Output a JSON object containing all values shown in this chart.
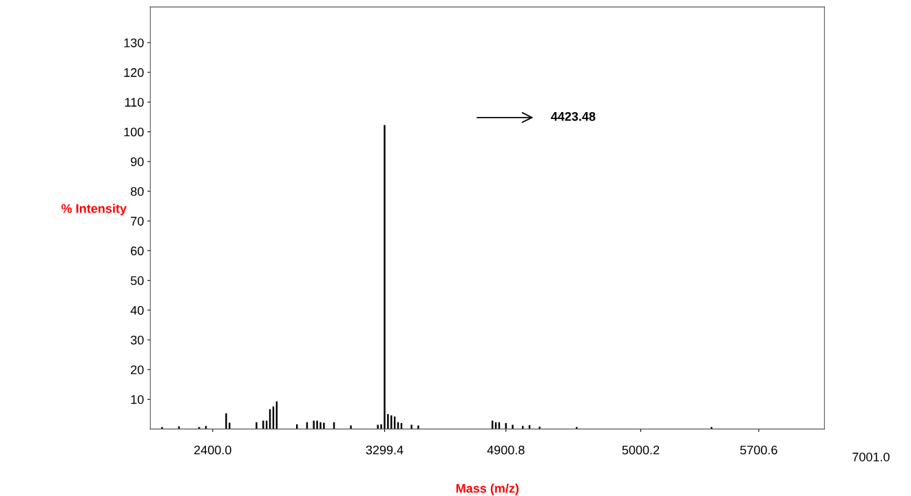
{
  "chart_data": {
    "type": "bar",
    "xlabel": "Mass (m/z)",
    "ylabel": "% Intensity",
    "color": "#000000",
    "categories": [
      null,
      null,
      null,
      null,
      null,
      null,
      null,
      null,
      null,
      null,
      null,
      null,
      null,
      null,
      null,
      null,
      null,
      null,
      "2400.0",
      null,
      null,
      null,
      null,
      null,
      null,
      null,
      null,
      null,
      null,
      null,
      null,
      null,
      null,
      null,
      null,
      null,
      null,
      null,
      null,
      null,
      null,
      null,
      null,
      null,
      null,
      null,
      null,
      null,
      null,
      null,
      null,
      null,
      null,
      null,
      null,
      null,
      null,
      null,
      null,
      null,
      null,
      null,
      null,
      null,
      null,
      null,
      null,
      null,
      null,
      "3299.4",
      null,
      null,
      null,
      null,
      null,
      null,
      null,
      null,
      null,
      null,
      null,
      null,
      null,
      null,
      null,
      null,
      null,
      null,
      null,
      null,
      null,
      null,
      null,
      null,
      null,
      null,
      null,
      null,
      null,
      null,
      null,
      null,
      null,
      null,
      null,
      "4900.8",
      null,
      null,
      null,
      null,
      null,
      null,
      null,
      null,
      null,
      null,
      null,
      null,
      null,
      null,
      null,
      null,
      null,
      null,
      null,
      null,
      null,
      null,
      null,
      null,
      null,
      null,
      null,
      null,
      null,
      null,
      null,
      null,
      null,
      null,
      null,
      null,
      null,
      null,
      null,
      "5000.2",
      null,
      null,
      null,
      null,
      null,
      null,
      null,
      null,
      null,
      null,
      null,
      null,
      null,
      null,
      null,
      null,
      null,
      null,
      null,
      null,
      null,
      null,
      null,
      null,
      null,
      null,
      null,
      null,
      null,
      null,
      null,
      null,
      null,
      null,
      "5700.6",
      null,
      null,
      null,
      null,
      null,
      null,
      null,
      null,
      null,
      null,
      null,
      null,
      null,
      null,
      null,
      null,
      null,
      null,
      null
    ],
    "values": [
      null,
      null,
      null,
      0.7,
      null,
      null,
      null,
      null,
      0.9,
      null,
      null,
      null,
      null,
      null,
      0.7,
      null,
      1.0,
      null,
      null,
      null,
      null,
      null,
      5.3,
      2.1,
      null,
      null,
      null,
      null,
      null,
      null,
      null,
      2.3,
      null,
      2.8,
      2.8,
      6.7,
      7.6,
      9.3,
      null,
      null,
      null,
      null,
      null,
      1.6,
      null,
      null,
      2.3,
      null,
      2.8,
      2.8,
      2.3,
      2.1,
      null,
      null,
      2.3,
      null,
      null,
      null,
      null,
      1.2,
      null,
      null,
      null,
      null,
      null,
      null,
      null,
      1.4,
      1.6,
      102.3,
      5.0,
      4.6,
      4.2,
      2.3,
      2.0,
      null,
      null,
      1.4,
      null,
      1.2,
      null,
      null,
      null,
      null,
      null,
      null,
      null,
      null,
      null,
      null,
      null,
      null,
      null,
      null,
      null,
      null,
      null,
      null,
      null,
      null,
      null,
      2.8,
      2.3,
      2.3,
      null,
      2.0,
      null,
      1.4,
      null,
      null,
      1.0,
      null,
      1.3,
      null,
      null,
      0.8,
      null,
      null,
      null,
      null,
      null,
      null,
      null,
      null,
      null,
      null,
      0.7,
      null,
      null,
      null,
      null,
      null,
      null,
      null,
      null,
      null,
      null,
      null,
      null,
      null,
      null,
      null,
      null,
      null,
      null,
      null,
      null,
      null,
      null,
      null,
      null,
      null,
      null,
      null,
      null,
      null,
      null,
      null,
      null,
      null,
      null,
      null,
      null,
      null,
      null,
      null,
      0.7,
      null,
      null,
      null,
      null,
      null,
      null,
      null,
      null,
      null,
      null,
      null,
      null,
      null,
      null,
      null,
      null,
      null,
      null,
      null,
      null,
      null,
      null,
      null,
      null,
      null,
      null,
      null,
      null,
      null,
      null,
      null,
      null,
      null
    ],
    "ylim": [
      0,
      142
    ],
    "yticks": [
      10,
      20,
      30,
      40,
      50,
      60,
      70,
      80,
      90,
      100,
      110,
      120,
      130
    ],
    "annotations": [
      "4423.48",
      "7001.0"
    ]
  }
}
